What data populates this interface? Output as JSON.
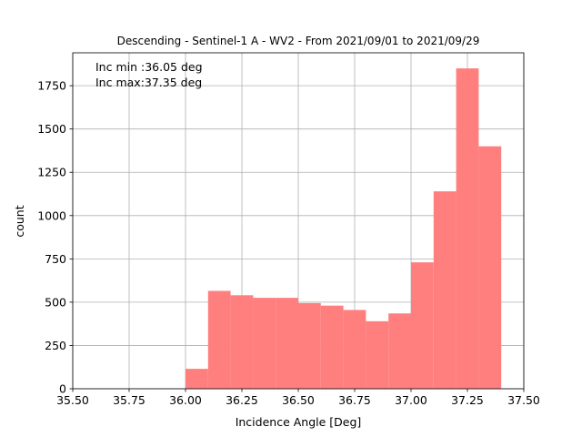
{
  "chart_data": {
    "type": "histogram",
    "title": "Descending - Sentinel-1 A - WV2 - From 2021/09/01 to 2021/09/29",
    "xlabel": "Incidence Angle [Deg]",
    "ylabel": "count",
    "xlim": [
      35.5,
      37.5
    ],
    "ylim": [
      0,
      1940
    ],
    "xticks": [
      "35.50",
      "35.75",
      "36.00",
      "36.25",
      "36.50",
      "36.75",
      "37.00",
      "37.25",
      "37.50"
    ],
    "xtick_values": [
      35.5,
      35.75,
      36.0,
      36.25,
      36.5,
      36.75,
      37.0,
      37.25,
      37.5
    ],
    "yticks": [
      "0",
      "250",
      "500",
      "750",
      "1000",
      "1250",
      "1500",
      "1750"
    ],
    "ytick_values": [
      0,
      250,
      500,
      750,
      1000,
      1250,
      1500,
      1750
    ],
    "grid": true,
    "bar_color": "#ff7f7f",
    "bins": [
      {
        "x0": 36.0,
        "x1": 36.1,
        "count": 115
      },
      {
        "x0": 36.1,
        "x1": 36.2,
        "count": 565
      },
      {
        "x0": 36.2,
        "x1": 36.3,
        "count": 540
      },
      {
        "x0": 36.3,
        "x1": 36.4,
        "count": 525
      },
      {
        "x0": 36.4,
        "x1": 36.5,
        "count": 525
      },
      {
        "x0": 36.5,
        "x1": 36.6,
        "count": 495
      },
      {
        "x0": 36.6,
        "x1": 36.7,
        "count": 480
      },
      {
        "x0": 36.7,
        "x1": 36.8,
        "count": 455
      },
      {
        "x0": 36.8,
        "x1": 36.9,
        "count": 390
      },
      {
        "x0": 36.9,
        "x1": 37.0,
        "count": 435
      },
      {
        "x0": 37.0,
        "x1": 37.1,
        "count": 730
      },
      {
        "x0": 37.1,
        "x1": 37.2,
        "count": 1140
      },
      {
        "x0": 37.2,
        "x1": 37.3,
        "count": 1850
      },
      {
        "x0": 37.3,
        "x1": 37.4,
        "count": 1400
      }
    ],
    "annotations": [
      "Inc min :36.05 deg",
      "Inc max:37.35 deg"
    ]
  }
}
